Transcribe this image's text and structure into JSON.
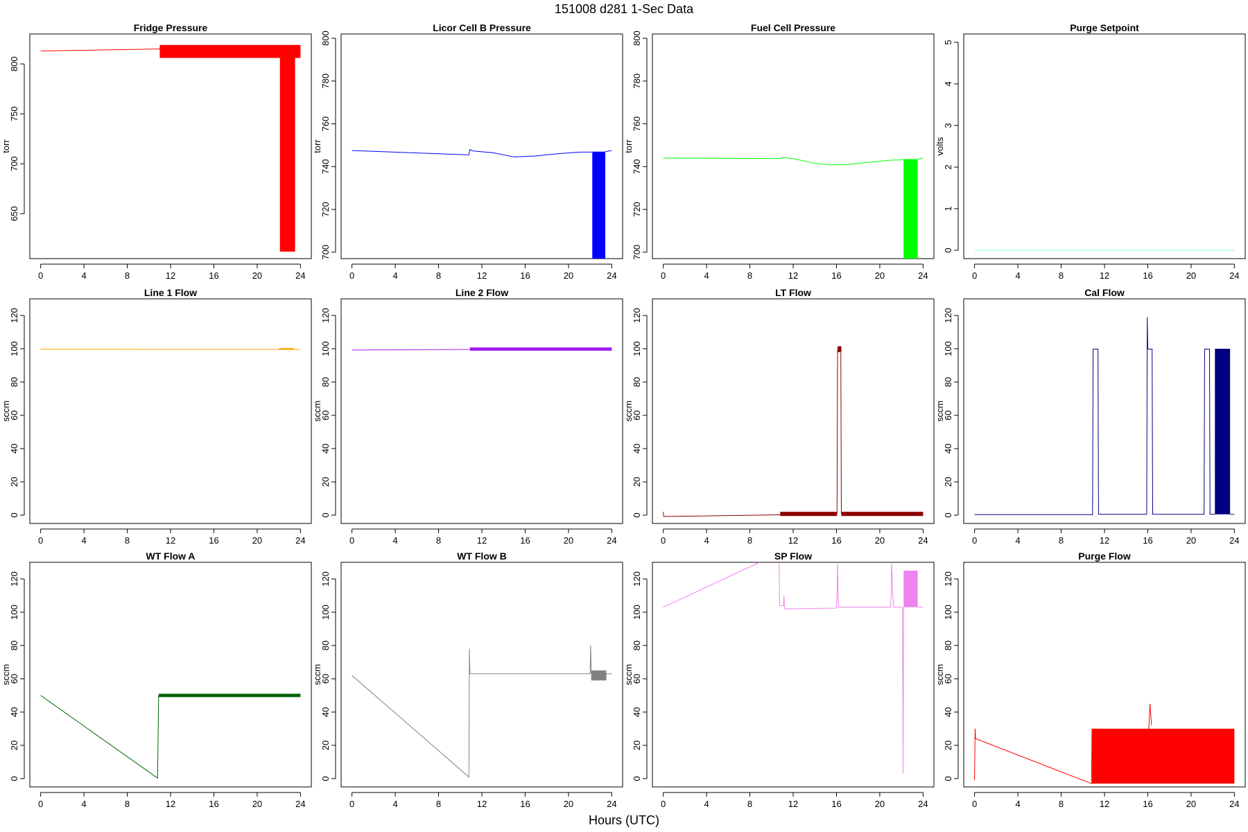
{
  "page": {
    "title": "151008   d281   1-Sec Data",
    "xlabel": "Hours (UTC)"
  },
  "chart_data": [
    {
      "type": "line",
      "title": "Fridge Pressure",
      "ylabel": "torr",
      "color": "#ff0000",
      "xlim": [
        -1,
        25
      ],
      "ylim": [
        605,
        830
      ],
      "xticks": [
        0,
        4,
        8,
        12,
        16,
        20,
        24
      ],
      "yticks": [
        650,
        700,
        750,
        800
      ],
      "series": [
        {
          "segments": [
            [
              [
                0,
                813
              ],
              [
                11,
                815
              ],
              [
                11.2,
                813
              ]
            ]
          ]
        }
      ],
      "bands": [
        {
          "x0": 11,
          "x1": 24,
          "y0": 806,
          "y1": 819
        },
        {
          "x0": 22.1,
          "x1": 23.5,
          "y0": 612,
          "y1": 815
        }
      ]
    },
    {
      "type": "line",
      "title": "Licor Cell B Pressure",
      "ylabel": "torr",
      "color": "#0000ff",
      "xlim": [
        -1,
        25
      ],
      "ylim": [
        697,
        802
      ],
      "xticks": [
        0,
        4,
        8,
        12,
        16,
        20,
        24
      ],
      "yticks": [
        700,
        720,
        740,
        760,
        780,
        800
      ],
      "series": [
        {
          "segments": [
            [
              [
                0,
                747.5
              ],
              [
                10.8,
                745.5
              ],
              [
                10.9,
                748
              ],
              [
                11.2,
                747.3
              ],
              [
                13,
                746.5
              ],
              [
                15,
                744.5
              ],
              [
                17,
                745
              ],
              [
                19,
                746
              ],
              [
                21,
                746.8
              ],
              [
                22.2,
                746.8
              ]
            ],
            [
              [
                23.4,
                747
              ],
              [
                24,
                747.5
              ]
            ]
          ]
        }
      ],
      "bands": [
        {
          "x0": 22.2,
          "x1": 23.4,
          "y0": 697,
          "y1": 747
        }
      ]
    },
    {
      "type": "line",
      "title": "Fuel Cell Pressure",
      "ylabel": "torr",
      "color": "#00ff00",
      "xlim": [
        -1,
        25
      ],
      "ylim": [
        697,
        802
      ],
      "xticks": [
        0,
        4,
        8,
        12,
        16,
        20,
        24
      ],
      "yticks": [
        700,
        720,
        740,
        760,
        780,
        800
      ],
      "series": [
        {
          "segments": [
            [
              [
                0,
                744
              ],
              [
                10.8,
                743.8
              ],
              [
                11,
                744.2
              ],
              [
                12,
                743.8
              ],
              [
                14,
                741.5
              ],
              [
                15.5,
                740.8
              ],
              [
                17,
                741
              ],
              [
                19,
                742
              ],
              [
                21,
                743
              ],
              [
                22.2,
                743.2
              ]
            ],
            [
              [
                23.5,
                743.5
              ],
              [
                24,
                744
              ]
            ]
          ]
        }
      ],
      "bands": [
        {
          "x0": 22.2,
          "x1": 23.5,
          "y0": 697,
          "y1": 743.5
        }
      ]
    },
    {
      "type": "line",
      "title": "Purge Setpoint",
      "ylabel": "volts",
      "color": "#7fffd4",
      "xlim": [
        -1,
        25
      ],
      "ylim": [
        -0.2,
        5.2
      ],
      "xticks": [
        0,
        4,
        8,
        12,
        16,
        20,
        24
      ],
      "yticks": [
        0,
        1,
        2,
        3,
        4,
        5
      ],
      "series": [
        {
          "segments": [
            [
              [
                0,
                0
              ],
              [
                24,
                0
              ]
            ]
          ]
        }
      ],
      "bands": []
    },
    {
      "type": "line",
      "title": "Line 1 Flow",
      "ylabel": "sccm",
      "color": "#ffa500",
      "xlim": [
        -1,
        25
      ],
      "ylim": [
        -5,
        130
      ],
      "xticks": [
        0,
        4,
        8,
        12,
        16,
        20,
        24
      ],
      "yticks": [
        0,
        20,
        40,
        60,
        80,
        100,
        120
      ],
      "series": [
        {
          "segments": [
            [
              [
                0,
                99.8
              ],
              [
                11,
                99.6
              ],
              [
                24,
                99.6
              ]
            ]
          ]
        }
      ],
      "bands": [
        {
          "x0": 22,
          "x1": 23.4,
          "y0": 99.4,
          "y1": 100.4
        }
      ]
    },
    {
      "type": "line",
      "title": "Line 2 Flow",
      "ylabel": "sccm",
      "color": "#a020f0",
      "xlim": [
        -1,
        25
      ],
      "ylim": [
        -5,
        130
      ],
      "xticks": [
        0,
        4,
        8,
        12,
        16,
        20,
        24
      ],
      "yticks": [
        0,
        20,
        40,
        60,
        80,
        100,
        120
      ],
      "series": [
        {
          "segments": [
            [
              [
                0,
                99.2
              ],
              [
                11,
                99.6
              ]
            ]
          ]
        }
      ],
      "bands": [
        {
          "x0": 10.9,
          "x1": 24,
          "y0": 98.8,
          "y1": 100.8
        }
      ]
    },
    {
      "type": "line",
      "title": "LT Flow",
      "ylabel": "sccm",
      "color": "#8b0000",
      "xlim": [
        -1,
        25
      ],
      "ylim": [
        -5,
        130
      ],
      "xticks": [
        0,
        4,
        8,
        12,
        16,
        20,
        24
      ],
      "yticks": [
        0,
        20,
        40,
        60,
        80,
        100,
        120
      ],
      "series": [
        {
          "segments": [
            [
              [
                0,
                2
              ],
              [
                0.05,
                -0.8
              ],
              [
                10.8,
                0.2
              ]
            ],
            [
              [
                16.05,
                0.8
              ],
              [
                16.1,
                99
              ],
              [
                16.4,
                99
              ],
              [
                16.45,
                0.8
              ]
            ]
          ]
        }
      ],
      "bands": [
        {
          "x0": 10.8,
          "x1": 16.05,
          "y0": -0.5,
          "y1": 2
        },
        {
          "x0": 16.45,
          "x1": 24,
          "y0": -0.5,
          "y1": 2
        },
        {
          "x0": 16.1,
          "x1": 16.45,
          "y0": 98,
          "y1": 101.5
        }
      ]
    },
    {
      "type": "line",
      "title": "Cal Flow",
      "ylabel": "sccm",
      "color": "#000080",
      "xlim": [
        -1,
        25
      ],
      "ylim": [
        -5,
        130
      ],
      "xticks": [
        0,
        4,
        8,
        12,
        16,
        20,
        24
      ],
      "yticks": [
        0,
        20,
        40,
        60,
        80,
        100,
        120
      ],
      "series": [
        {
          "segments": [
            [
              [
                0,
                0.3
              ],
              [
                10.9,
                0.3
              ],
              [
                10.95,
                99.8
              ],
              [
                11.4,
                99.8
              ],
              [
                11.45,
                0.5
              ],
              [
                15.9,
                0.5
              ],
              [
                15.95,
                119
              ],
              [
                16,
                99.8
              ],
              [
                16.4,
                99.8
              ],
              [
                16.45,
                0.5
              ],
              [
                21.2,
                0.5
              ],
              [
                21.25,
                99.8
              ],
              [
                21.7,
                99.8
              ],
              [
                21.75,
                0.5
              ],
              [
                22.2,
                0.5
              ]
            ],
            [
              [
                23.6,
                0.5
              ],
              [
                24,
                0.5
              ]
            ]
          ]
        }
      ],
      "bands": [
        {
          "x0": 22.2,
          "x1": 23.6,
          "y0": 0.5,
          "y1": 100
        }
      ]
    },
    {
      "type": "line",
      "title": "WT Flow A",
      "ylabel": "sccm",
      "color": "#006400",
      "xlim": [
        -1,
        25
      ],
      "ylim": [
        -5,
        130
      ],
      "xticks": [
        0,
        4,
        8,
        12,
        16,
        20,
        24
      ],
      "yticks": [
        0,
        20,
        40,
        60,
        80,
        100,
        120
      ],
      "series": [
        {
          "segments": [
            [
              [
                0,
                50
              ],
              [
                10.8,
                0.3
              ],
              [
                10.9,
                50
              ]
            ]
          ]
        }
      ],
      "bands": [
        {
          "x0": 10.9,
          "x1": 24,
          "y0": 49,
          "y1": 51
        }
      ]
    },
    {
      "type": "line",
      "title": "WT Flow B",
      "ylabel": "sccm",
      "color": "#808080",
      "xlim": [
        -1,
        25
      ],
      "ylim": [
        -5,
        130
      ],
      "xticks": [
        0,
        4,
        8,
        12,
        16,
        20,
        24
      ],
      "yticks": [
        0,
        20,
        40,
        60,
        80,
        100,
        120
      ],
      "series": [
        {
          "segments": [
            [
              [
                0,
                62
              ],
              [
                10.8,
                1
              ],
              [
                10.85,
                78
              ],
              [
                10.9,
                63
              ],
              [
                22,
                63
              ],
              [
                22.05,
                80
              ],
              [
                22.1,
                63
              ]
            ],
            [
              [
                23.5,
                63
              ],
              [
                24,
                63
              ]
            ]
          ]
        }
      ],
      "bands": [
        {
          "x0": 22.1,
          "x1": 23.5,
          "y0": 59,
          "y1": 65
        }
      ]
    },
    {
      "type": "line",
      "title": "SP Flow",
      "ylabel": "sccm",
      "color": "#ee82ee",
      "xlim": [
        -1,
        25
      ],
      "ylim": [
        -5,
        130
      ],
      "xticks": [
        0,
        4,
        8,
        12,
        16,
        20,
        24
      ],
      "yticks": [
        0,
        20,
        40,
        60,
        80,
        100,
        120
      ],
      "series": [
        {
          "segments": [
            [
              [
                0,
                103
              ],
              [
                8.9,
                130
              ]
            ],
            [
              [
                10.7,
                130
              ],
              [
                10.75,
                104
              ],
              [
                11.1,
                104
              ],
              [
                11.15,
                110
              ],
              [
                11.2,
                102
              ],
              [
                16,
                102.5
              ],
              [
                16.05,
                110
              ],
              [
                16.1,
                130
              ],
              [
                16.15,
                110
              ],
              [
                16.2,
                103
              ],
              [
                21,
                103
              ],
              [
                21.05,
                110
              ],
              [
                21.1,
                130
              ],
              [
                21.2,
                110
              ],
              [
                21.3,
                103
              ],
              [
                22.1,
                103
              ],
              [
                22.15,
                3
              ],
              [
                22.2,
                103
              ]
            ],
            [
              [
                23.5,
                103
              ],
              [
                24,
                103
              ]
            ]
          ]
        }
      ],
      "bands": [
        {
          "x0": 22.2,
          "x1": 23.5,
          "y0": 103,
          "y1": 125
        }
      ]
    },
    {
      "type": "line",
      "title": "Purge Flow",
      "ylabel": "sccm",
      "color": "#ff0000",
      "xlim": [
        -1,
        25
      ],
      "ylim": [
        -5,
        130
      ],
      "xticks": [
        0,
        4,
        8,
        12,
        16,
        20,
        24
      ],
      "yticks": [
        0,
        20,
        40,
        60,
        80,
        100,
        120
      ],
      "series": [
        {
          "segments": [
            [
              [
                0,
                -1
              ],
              [
                0.05,
                30
              ],
              [
                0.1,
                24
              ],
              [
                10.8,
                -3
              ],
              [
                10.85,
                30
              ]
            ],
            [
              [
                16.1,
                30
              ],
              [
                16.2,
                45
              ],
              [
                16.35,
                32
              ]
            ]
          ]
        }
      ],
      "bands": [
        {
          "x0": 10.85,
          "x1": 24,
          "y0": -3,
          "y1": 30
        }
      ]
    }
  ]
}
